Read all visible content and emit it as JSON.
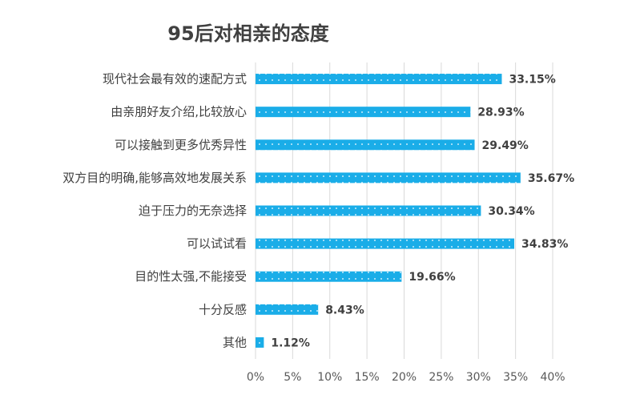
{
  "chart_data": {
    "type": "bar",
    "orientation": "horizontal",
    "title": "95后对相亲的态度",
    "xlabel": "",
    "ylabel": "",
    "categories": [
      "现代社会最有效的速配方式",
      "由亲朋好友介绍,比较放心",
      "可以接触到更多优秀异性",
      "双方目的明确,能够高效地发展关系",
      "迫于压力的无奈选择",
      "可以试试看",
      "目的性太强,不能接受",
      "十分反感",
      "其他"
    ],
    "values": [
      33.15,
      28.93,
      29.49,
      35.67,
      30.34,
      34.83,
      19.66,
      8.43,
      1.12
    ],
    "value_labels": [
      "33.15%",
      "28.93%",
      "29.49%",
      "35.67%",
      "30.34%",
      "34.83%",
      "19.66%",
      "8.43%",
      "1.12%"
    ],
    "xlim": [
      0,
      40
    ],
    "x_ticks": [
      "0%",
      "5%",
      "10%",
      "15%",
      "20%",
      "25%",
      "30%",
      "35%",
      "40%"
    ],
    "grid": true,
    "legend": "none",
    "bar_color": "#1AADE8",
    "bar_dot_color": "#ffffff"
  }
}
